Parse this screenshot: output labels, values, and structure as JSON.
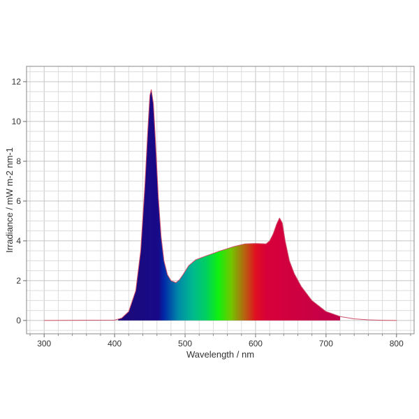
{
  "chart_data": {
    "type": "area",
    "title": "",
    "xlabel": "Wavelength / nm",
    "ylabel": "Irradiance / mW m-2 nm-1",
    "xlim": [
      275,
      825
    ],
    "ylim": [
      -0.67,
      12.77
    ],
    "xticks": [
      300,
      400,
      500,
      600,
      700,
      800
    ],
    "yticks": [
      0,
      2,
      4,
      6,
      8,
      10,
      12
    ],
    "grid": true,
    "filled_range": [
      405,
      720
    ],
    "fill": "visible-spectrum gradient",
    "line_color": "#d0506a",
    "gradient_stops": [
      {
        "x": 405,
        "color": "#1c0a78"
      },
      {
        "x": 462,
        "color": "#180a88"
      },
      {
        "x": 470,
        "color": "#0028a8"
      },
      {
        "x": 490,
        "color": "#0088a8"
      },
      {
        "x": 510,
        "color": "#00b890"
      },
      {
        "x": 530,
        "color": "#00d060"
      },
      {
        "x": 547,
        "color": "#10f010"
      },
      {
        "x": 565,
        "color": "#70c800"
      },
      {
        "x": 585,
        "color": "#b86010"
      },
      {
        "x": 600,
        "color": "#e01020"
      },
      {
        "x": 615,
        "color": "#d8003a"
      },
      {
        "x": 720,
        "color": "#c0004a"
      }
    ],
    "x": [
      300,
      400,
      410,
      420,
      430,
      437,
      443,
      447,
      450,
      452,
      455,
      458,
      462,
      466,
      470,
      475,
      480,
      487,
      492,
      497,
      505,
      515,
      530,
      550,
      570,
      585,
      600,
      615,
      620,
      625,
      630,
      634,
      638,
      642,
      648,
      655,
      665,
      680,
      700,
      720,
      740,
      760,
      780,
      800
    ],
    "y": [
      0,
      0.02,
      0.12,
      0.45,
      1.5,
      3.5,
      6.8,
      9.5,
      11.3,
      11.6,
      10.9,
      9.0,
      6.2,
      4.2,
      3.0,
      2.3,
      2.0,
      1.9,
      2.05,
      2.3,
      2.75,
      3.05,
      3.25,
      3.5,
      3.72,
      3.85,
      3.87,
      3.85,
      4.0,
      4.35,
      4.85,
      5.15,
      4.9,
      4.0,
      3.0,
      2.35,
      1.7,
      1.0,
      0.45,
      0.2,
      0.08,
      0.03,
      0.01,
      0.0
    ]
  }
}
